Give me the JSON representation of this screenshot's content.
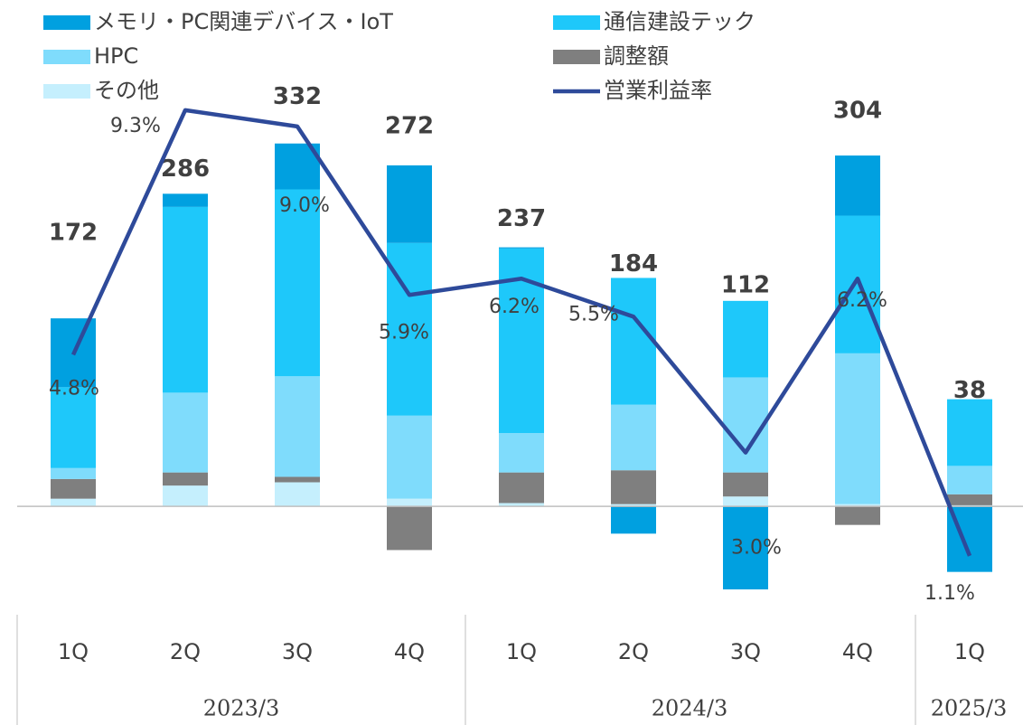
{
  "chart_data": {
    "type": "stacked_bar_line",
    "categories": [
      "1Q",
      "2Q",
      "3Q",
      "4Q",
      "1Q",
      "2Q",
      "3Q",
      "4Q",
      "1Q"
    ],
    "group_labels": [
      "2023/3",
      "2024/3",
      "2025/3"
    ],
    "series": [
      {
        "name": "その他",
        "color": "#c5effd",
        "values": [
          7,
          19,
          22,
          7,
          3,
          2,
          9,
          2,
          1
        ]
      },
      {
        "name": "調整額",
        "color": "#7f7f7f",
        "values": [
          18,
          12,
          5,
          -40,
          28,
          31,
          22,
          -17,
          10
        ]
      },
      {
        "name": "HPC",
        "color": "#7fdcfc",
        "values": [
          10,
          73,
          92,
          76,
          36,
          60,
          87,
          138,
          26
        ]
      },
      {
        "name": "通信建設テック",
        "color": "#1ec8fa",
        "values": [
          74,
          170,
          171,
          158,
          169,
          116,
          70,
          126,
          61
        ]
      },
      {
        "name": "メモリ・PC関連デバイス・IoT",
        "color": "#00a0e0",
        "values": [
          63,
          12,
          42,
          71,
          1,
          -25,
          -76,
          55,
          -60
        ]
      },
      {
        "name": "営業利益率",
        "color": "#2e4a9a",
        "axis": "y2",
        "type": "line",
        "values": [
          4.8,
          9.3,
          9.0,
          5.9,
          6.2,
          5.5,
          3.0,
          6.2,
          1.1
        ],
        "value_labels": [
          "4.8%",
          "9.3%",
          "9.0%",
          "5.9%",
          "6.2%",
          "5.5%",
          "3.0%",
          "6.2%",
          "1.1%"
        ]
      }
    ],
    "totals": [
      172,
      286,
      332,
      272,
      237,
      184,
      112,
      304,
      38
    ],
    "ylim": [
      -100,
      460
    ],
    "y2lim": [
      0,
      11.26
    ]
  }
}
